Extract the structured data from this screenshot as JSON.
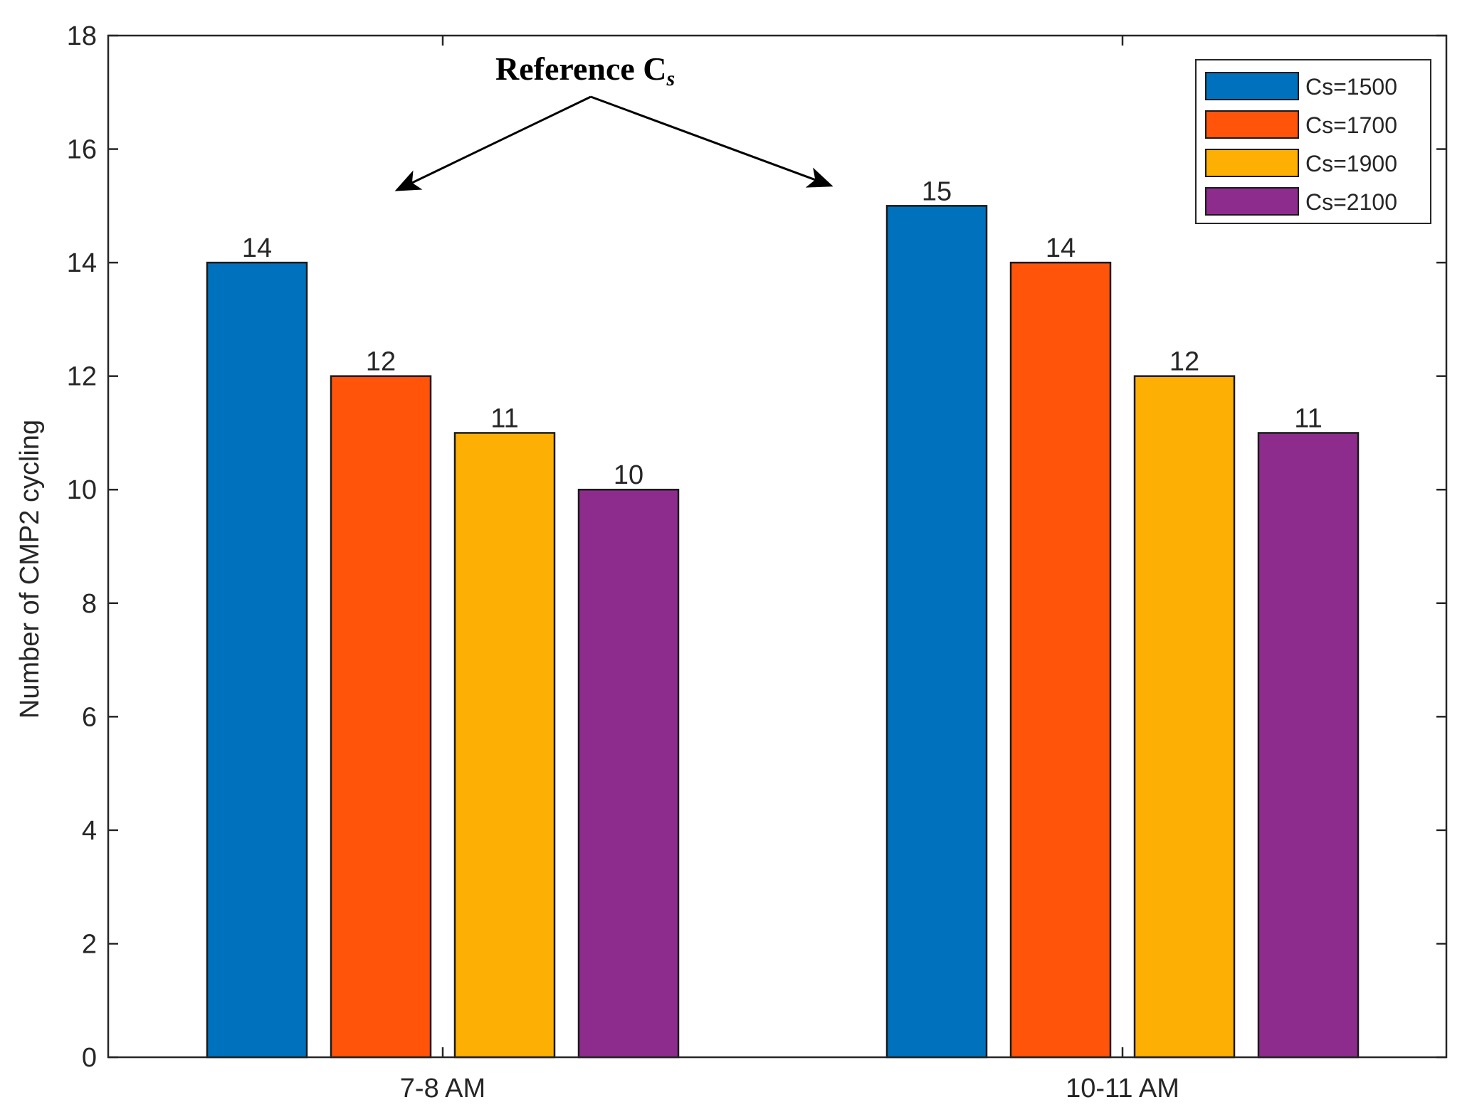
{
  "chart_data": {
    "type": "bar",
    "categories": [
      "7-8 AM",
      "10-11 AM"
    ],
    "series": [
      {
        "name": "Cs=1500",
        "values": [
          14,
          15
        ],
        "color": "#0072BD"
      },
      {
        "name": "Cs=1700",
        "values": [
          12,
          14
        ],
        "color": "#FF5409"
      },
      {
        "name": "Cs=1900",
        "values": [
          11,
          12
        ],
        "color": "#FDB003"
      },
      {
        "name": "Cs=2100",
        "values": [
          10,
          11
        ],
        "color": "#8E2C8E"
      }
    ],
    "ylabel": "Number of CMP2 cycling",
    "xlabel": "",
    "ylim": [
      0,
      18
    ],
    "yticks": [
      0,
      2,
      4,
      6,
      8,
      10,
      12,
      14,
      16,
      18
    ],
    "legend_position": "top-right",
    "annotation": {
      "text": "Reference C",
      "subscript": "s"
    }
  }
}
